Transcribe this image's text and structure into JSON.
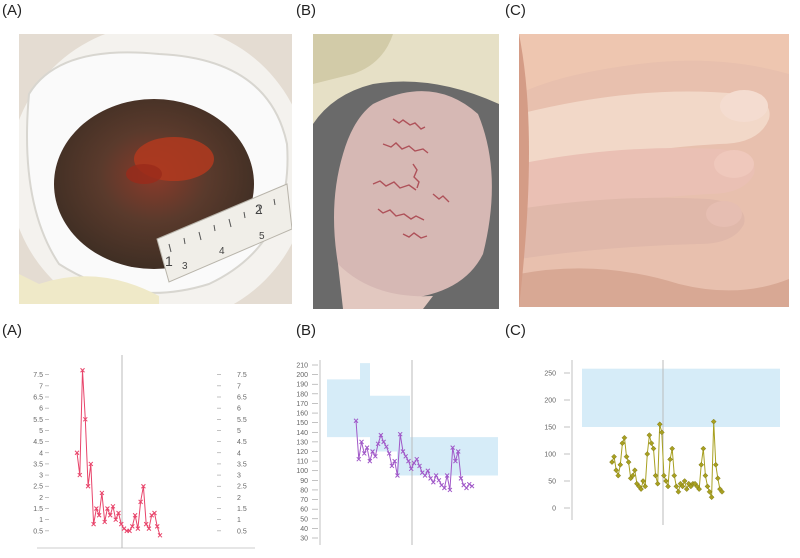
{
  "figure": {
    "top_labels": [
      "(A)",
      "(B)",
      "(C)"
    ],
    "bottom_labels": [
      "(A)",
      "(B)",
      "(C)"
    ],
    "photo_a": {
      "ruler_numbers": [
        "1",
        "2",
        "3",
        "4",
        "5"
      ]
    }
  },
  "colors": {
    "series_a": "#e8446a",
    "series_b": "#a058c8",
    "series_c": "#a8a020",
    "band": "#d6ecf8",
    "axis": "#bbbbbb"
  },
  "chart_data": [
    {
      "type": "line",
      "title": "",
      "ylim": [
        0,
        7.8
      ],
      "y_ticks": [
        "7.5",
        "7",
        "6.5",
        "6",
        "5.5",
        "5",
        "4.5",
        "4",
        "3.5",
        "3",
        "2.5",
        "2",
        "1.5",
        "1",
        "0.5"
      ],
      "y_tick_values": [
        7.5,
        7,
        6.5,
        6,
        5.5,
        5,
        4.5,
        4,
        3.5,
        3,
        2.5,
        2,
        1.5,
        1,
        0.5
      ],
      "x": [
        0,
        1,
        2,
        3,
        4,
        5,
        6,
        7,
        8,
        9,
        10,
        11,
        12,
        13,
        14,
        15,
        16,
        17,
        18,
        19,
        20,
        21,
        22,
        23,
        24,
        25,
        26,
        27,
        28,
        29,
        30
      ],
      "values": [
        4,
        3,
        7.7,
        5.5,
        2.5,
        3.5,
        0.8,
        1.5,
        1.2,
        2.2,
        0.9,
        1.5,
        1.2,
        1.6,
        1.0,
        1.3,
        0.8,
        0.6,
        0.5,
        0.5,
        0.7,
        1.2,
        0.6,
        1.8,
        2.5,
        0.8,
        0.6,
        1.2,
        1.3,
        0.7,
        0.3
      ]
    },
    {
      "type": "line",
      "title": "",
      "ylim": [
        30,
        212
      ],
      "y_ticks": [
        "210",
        "200",
        "190",
        "180",
        "170",
        "160",
        "150",
        "140",
        "130",
        "120",
        "110",
        "100",
        "90",
        "80",
        "70",
        "60",
        "50",
        "40",
        "30"
      ],
      "y_tick_values": [
        210,
        200,
        190,
        180,
        170,
        160,
        150,
        140,
        130,
        120,
        110,
        100,
        90,
        80,
        70,
        60,
        50,
        40,
        30
      ],
      "values": [
        152,
        112,
        130,
        118,
        124,
        110,
        120,
        115,
        128,
        137,
        130,
        125,
        118,
        105,
        110,
        95,
        138,
        120,
        115,
        110,
        102,
        108,
        112,
        105,
        98,
        95,
        100,
        92,
        88,
        95,
        90,
        85,
        82,
        95,
        80,
        124,
        110,
        120,
        92,
        85,
        82,
        86,
        84
      ]
    },
    {
      "type": "line",
      "title": "",
      "ylim": [
        0,
        260
      ],
      "y_ticks": [
        "250",
        "200",
        "150",
        "100",
        "50",
        "0"
      ],
      "y_tick_values": [
        250,
        200,
        150,
        100,
        50,
        0
      ],
      "values": [
        85,
        95,
        70,
        60,
        80,
        120,
        130,
        95,
        85,
        55,
        60,
        70,
        45,
        40,
        35,
        50,
        40,
        100,
        135,
        120,
        110,
        60,
        45,
        155,
        140,
        60,
        50,
        40,
        90,
        110,
        60,
        40,
        30,
        45,
        40,
        50,
        35,
        45,
        40,
        45,
        45,
        40,
        35,
        80,
        110,
        60,
        40,
        30,
        20,
        160,
        80,
        55,
        35,
        30
      ]
    }
  ]
}
